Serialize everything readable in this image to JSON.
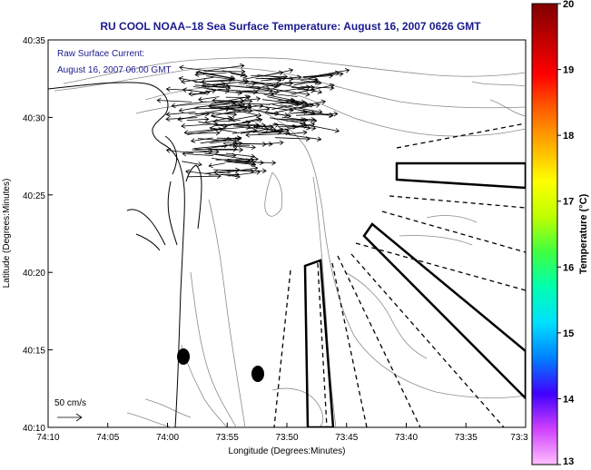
{
  "title": "RU COOL  NOAA–18  Sea Surface Temperature:  August 16, 2007 0626 GMT",
  "annotation": {
    "line1": "Raw Surface Current:",
    "line2": "August 16, 2007 06:00 GMT"
  },
  "scale_label": "50 cm/s",
  "axes": {
    "xlabel": "Longitude (Degrees:Minutes)",
    "ylabel": "Latitude (Degrees:Minutes)",
    "x_ticks": [
      "74:10",
      "74:05",
      "74:00",
      "73:55",
      "73:50",
      "73:45",
      "73:40",
      "73:35",
      "73:3"
    ],
    "y_ticks": [
      "40:35",
      "40:30",
      "40:25",
      "40:20",
      "40:15",
      "40:10"
    ]
  },
  "colorbar": {
    "label": "Temperature (°C)",
    "ticks": [
      "20",
      "19",
      "18",
      "17",
      "16",
      "15",
      "14",
      "13"
    ],
    "min": 13,
    "max": 20,
    "colors": [
      "#ffc0ff",
      "#d040ff",
      "#4000ff",
      "#0080ff",
      "#00e0ff",
      "#00ffb0",
      "#40ff40",
      "#c0ff00",
      "#ffff00",
      "#ffb000",
      "#ff6000",
      "#ff0000",
      "#c00000",
      "#800000"
    ]
  }
}
